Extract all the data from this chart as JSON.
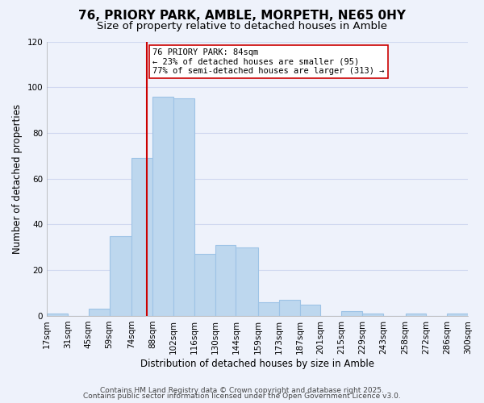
{
  "title": "76, PRIORY PARK, AMBLE, MORPETH, NE65 0HY",
  "subtitle": "Size of property relative to detached houses in Amble",
  "xlabel": "Distribution of detached houses by size in Amble",
  "ylabel": "Number of detached properties",
  "bin_edges": [
    17,
    31,
    45,
    59,
    74,
    88,
    102,
    116,
    130,
    144,
    159,
    173,
    187,
    201,
    215,
    229,
    243,
    258,
    272,
    286,
    300
  ],
  "bin_labels": [
    "17sqm",
    "31sqm",
    "45sqm",
    "59sqm",
    "74sqm",
    "88sqm",
    "102sqm",
    "116sqm",
    "130sqm",
    "144sqm",
    "159sqm",
    "173sqm",
    "187sqm",
    "201sqm",
    "215sqm",
    "229sqm",
    "243sqm",
    "258sqm",
    "272sqm",
    "286sqm",
    "300sqm"
  ],
  "counts": [
    1,
    0,
    3,
    35,
    69,
    96,
    95,
    27,
    31,
    30,
    6,
    7,
    5,
    0,
    2,
    1,
    0,
    1,
    0,
    1
  ],
  "bar_color": "#bdd7ee",
  "bar_edgecolor": "#9dc3e6",
  "vline_x": 84,
  "vline_color": "#cc0000",
  "ylim": [
    0,
    120
  ],
  "yticks": [
    0,
    20,
    40,
    60,
    80,
    100,
    120
  ],
  "annotation_line1": "76 PRIORY PARK: 84sqm",
  "annotation_line2": "← 23% of detached houses are smaller (95)",
  "annotation_line3": "77% of semi-detached houses are larger (313) →",
  "footer1": "Contains HM Land Registry data © Crown copyright and database right 2025.",
  "footer2": "Contains public sector information licensed under the Open Government Licence v3.0.",
  "background_color": "#eef2fb",
  "grid_color": "#d0d8f0",
  "title_fontsize": 11,
  "subtitle_fontsize": 9.5,
  "label_fontsize": 8.5,
  "tick_fontsize": 7.5,
  "annotation_fontsize": 7.5,
  "footer_fontsize": 6.5
}
